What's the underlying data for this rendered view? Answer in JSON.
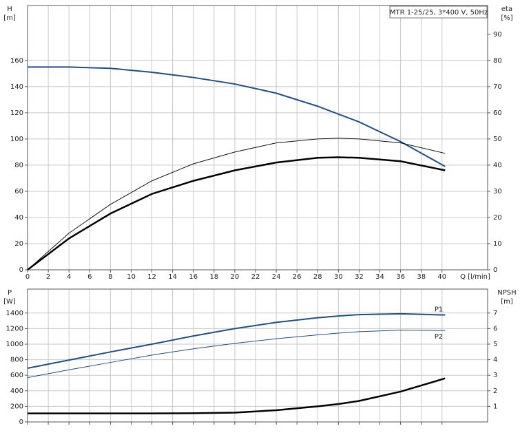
{
  "chart_data": [
    {
      "type": "line",
      "title": "MTR 1-25/25, 3*400 V, 50Hz",
      "y_label": "H",
      "y_unit": "[m]",
      "y2_label": "eta",
      "y2_unit": "[%]",
      "x_label": "Q [l/min]",
      "x": [
        0,
        4,
        8,
        12,
        16,
        20,
        24,
        28,
        30,
        32,
        36,
        40.3
      ],
      "xlim": [
        0,
        44.4
      ],
      "xticks": [
        0,
        2,
        4,
        6,
        8,
        10,
        12,
        14,
        16,
        18,
        20,
        22,
        24,
        26,
        28,
        30,
        32,
        34,
        36,
        38,
        40
      ],
      "ylim": [
        0,
        202
      ],
      "yticks": [
        0,
        20,
        40,
        60,
        80,
        100,
        120,
        140,
        160
      ],
      "y2lim": [
        0,
        101
      ],
      "y2ticks": [
        0,
        10,
        20,
        30,
        40,
        50,
        60,
        70,
        80,
        90
      ],
      "grid": true,
      "series": [
        {
          "color": "#1f4e89",
          "values": [
            155,
            155,
            154,
            151,
            147,
            142,
            135,
            125,
            119,
            113,
            98,
            79
          ]
        },
        {
          "color": "#111111",
          "axis": "y2",
          "values": [
            0,
            14,
            25,
            34,
            40.5,
            45,
            48.5,
            50,
            50.3,
            50,
            48.5,
            44.5
          ]
        },
        {
          "color": "#000000",
          "axis": "y2",
          "values": [
            0,
            12,
            21.5,
            29,
            34,
            38,
            41,
            42.8,
            43,
            42.8,
            41.5,
            38
          ]
        }
      ]
    },
    {
      "type": "line",
      "y_label": "P",
      "y_unit": "[W]",
      "y2_label": "NPSH",
      "y2_unit": "[m]",
      "x": [
        0,
        4,
        8,
        12,
        16,
        20,
        24,
        28,
        30,
        32,
        36,
        40.3
      ],
      "xlim": [
        0,
        44.4
      ],
      "xticks": [
        0,
        2,
        4,
        6,
        8,
        10,
        12,
        14,
        16,
        18,
        20,
        22,
        24,
        26,
        28,
        30,
        32,
        34,
        36,
        38,
        40
      ],
      "ylim": [
        0,
        1708
      ],
      "yticks": [
        0,
        200,
        400,
        600,
        800,
        1000,
        1200,
        1400
      ],
      "y2lim": [
        0,
        8.54
      ],
      "y2ticks": [
        1,
        2,
        3,
        4,
        5,
        6,
        7
      ],
      "grid": true,
      "series": [
        {
          "name": "P1",
          "color": "#1f4e89",
          "values": [
            690,
            795,
            900,
            1000,
            1105,
            1200,
            1280,
            1340,
            1362,
            1380,
            1390,
            1375
          ]
        },
        {
          "name": "P2",
          "color": "#1f4e89",
          "values": [
            570,
            670,
            765,
            860,
            940,
            1010,
            1070,
            1120,
            1142,
            1160,
            1180,
            1175
          ]
        },
        {
          "color": "#000000",
          "axis": "y2",
          "values": [
            0.55,
            0.55,
            0.55,
            0.55,
            0.56,
            0.6,
            0.75,
            1.0,
            1.15,
            1.35,
            1.95,
            2.8
          ]
        }
      ]
    }
  ]
}
